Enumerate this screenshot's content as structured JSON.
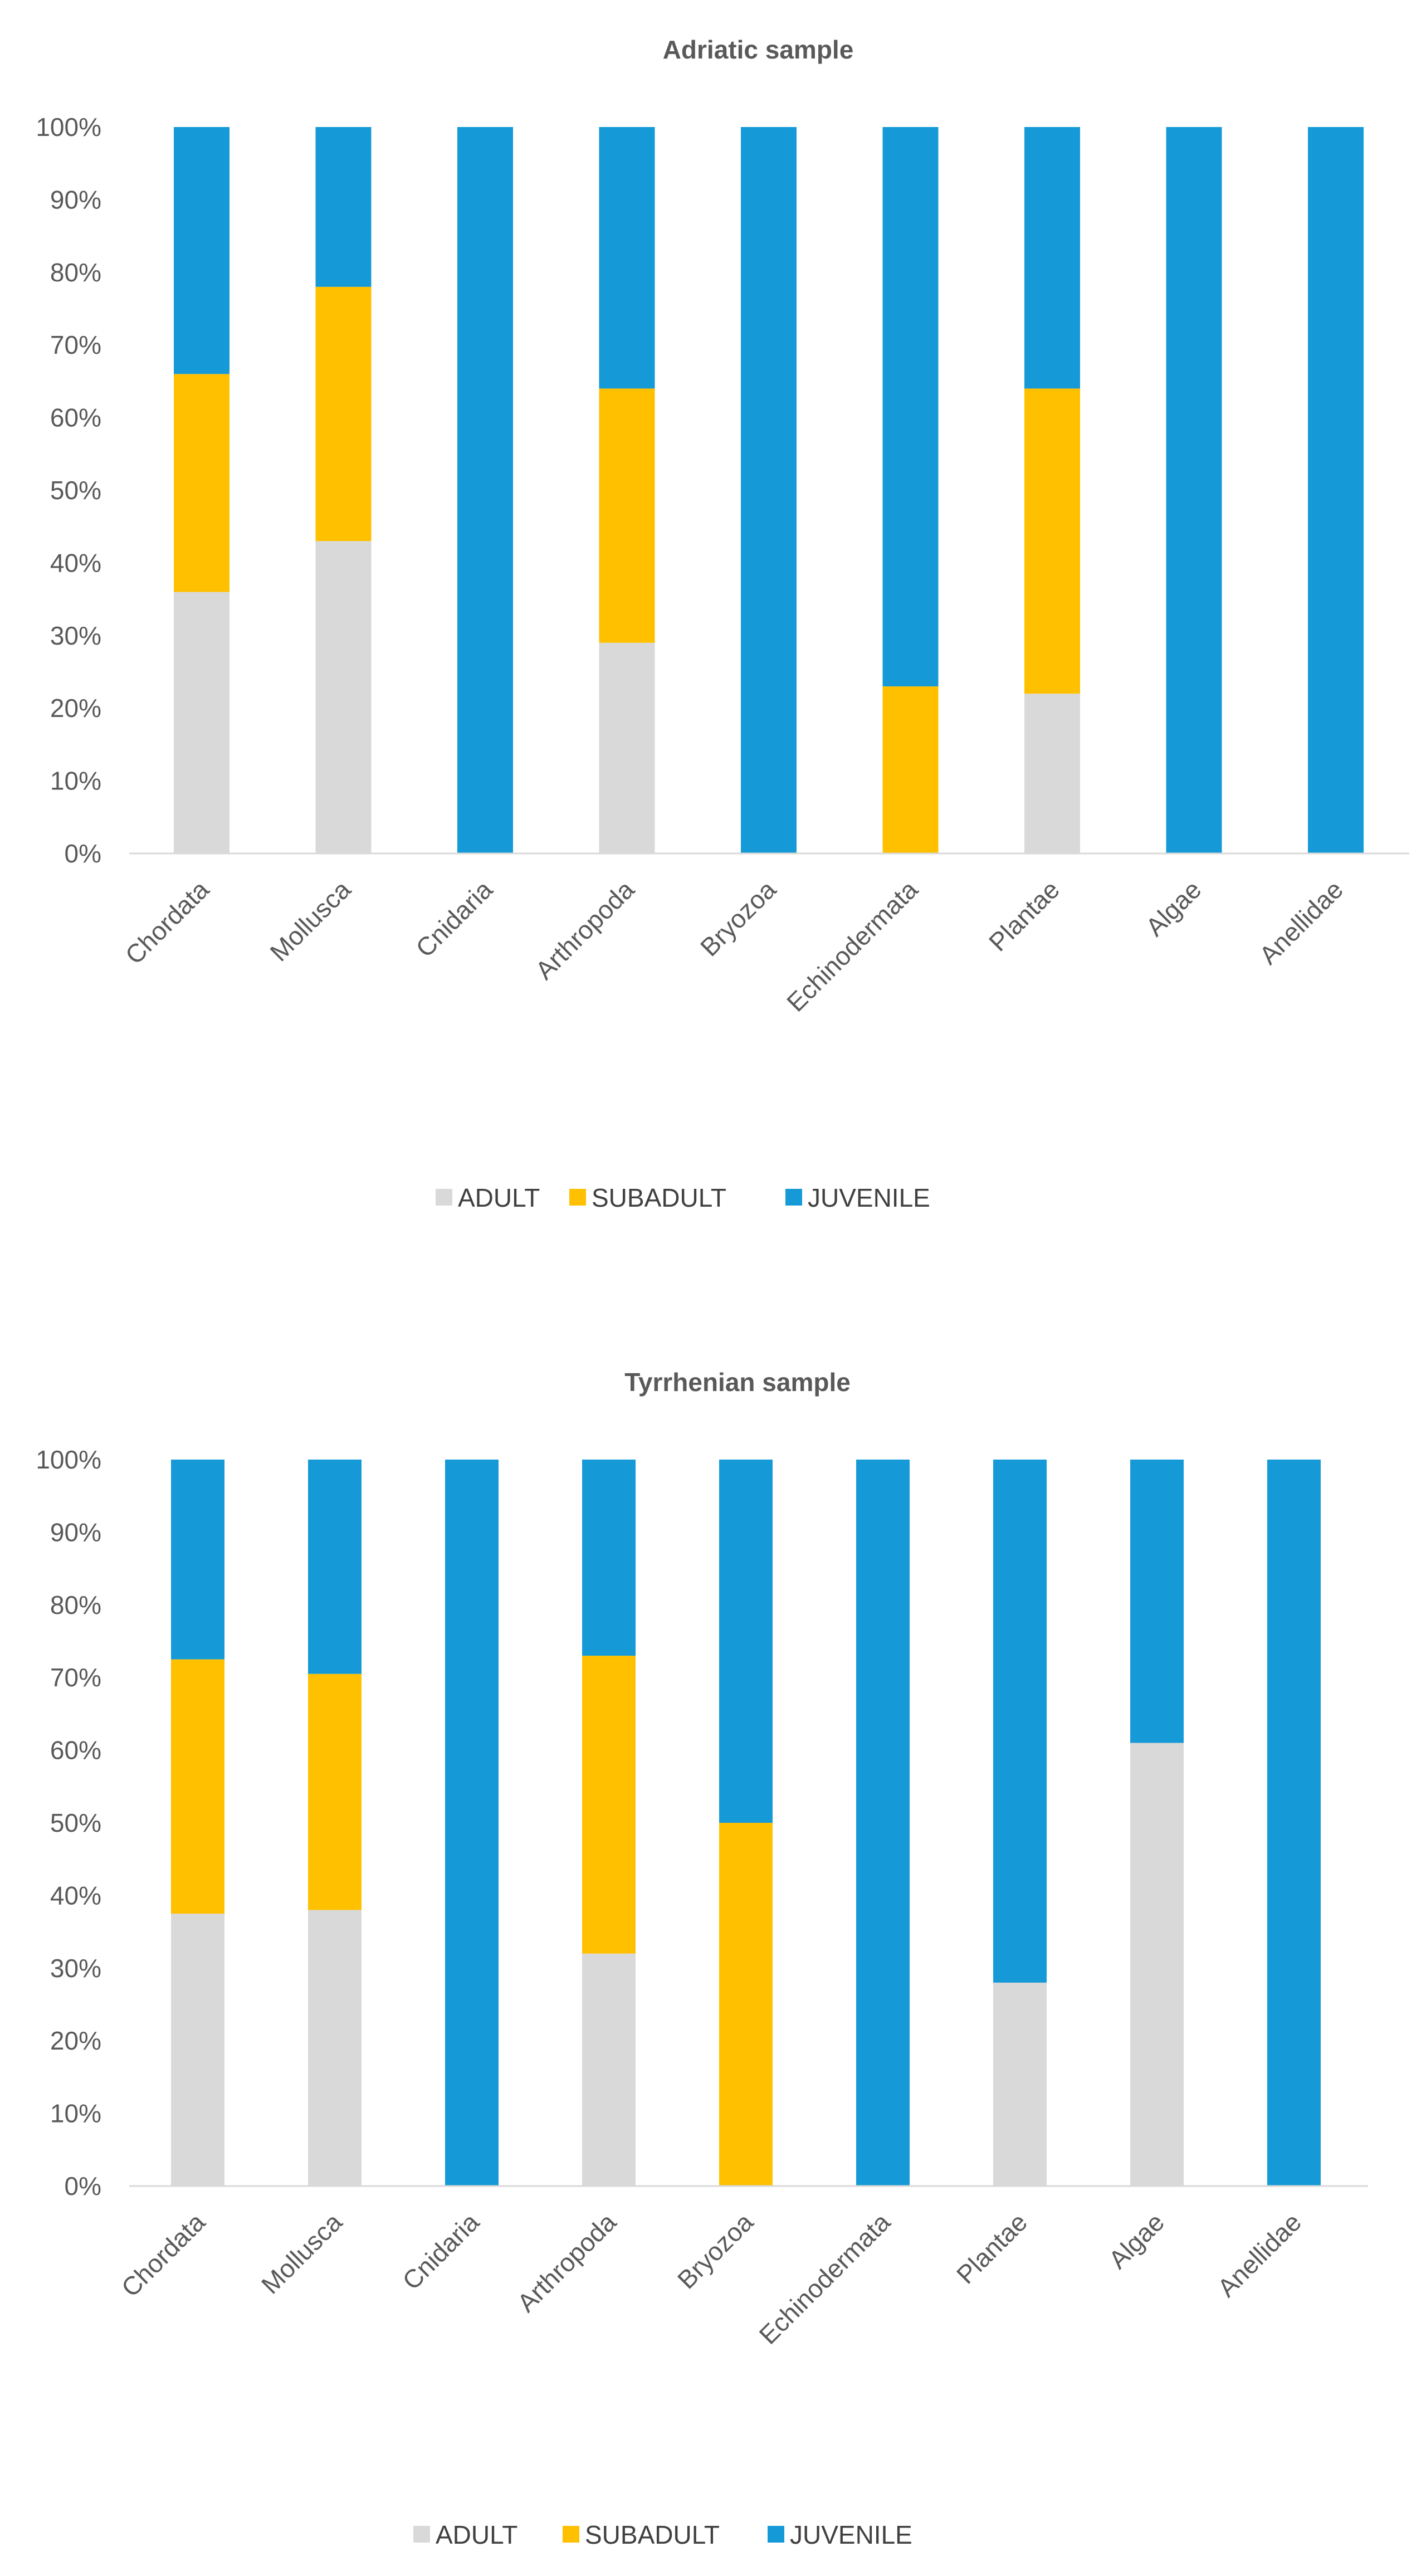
{
  "colors": {
    "adult": "#d9d9d9",
    "subadult": "#ffc000",
    "juvenile": "#159ad7",
    "axis": "#d9d9d9",
    "text": "#595959"
  },
  "chart_data": [
    {
      "type": "bar",
      "stacked": "percent",
      "title": "Adriatic sample",
      "categories": [
        "Chordata",
        "Mollusca",
        "Cnidaria",
        "Arthropoda",
        "Bryozoa",
        "Echinodermata",
        "Plantae",
        "Algae",
        "Anellidae"
      ],
      "series": [
        {
          "name": "ADULT",
          "color": "#d9d9d9",
          "values": [
            36,
            43,
            0,
            29,
            0,
            0,
            22,
            0,
            0
          ]
        },
        {
          "name": "SUBADULT",
          "color": "#ffc000",
          "values": [
            30,
            35,
            0,
            35,
            0,
            23,
            42,
            0,
            0
          ]
        },
        {
          "name": "JUVENILE",
          "color": "#159ad7",
          "values": [
            34,
            22,
            100,
            36,
            100,
            77,
            36,
            100,
            100
          ]
        }
      ],
      "ylim": [
        0,
        100
      ],
      "yticks": [
        "0%",
        "10%",
        "20%",
        "30%",
        "40%",
        "50%",
        "60%",
        "70%",
        "80%",
        "90%",
        "100%"
      ],
      "xlabel": "",
      "ylabel": "",
      "legend": "bottom"
    },
    {
      "type": "bar",
      "stacked": "percent",
      "title": "Tyrrhenian sample",
      "categories": [
        "Chordata",
        "Mollusca",
        "Cnidaria",
        "Arthropoda",
        "Bryozoa",
        "Echinodermata",
        "Plantae",
        "Algae",
        "Anellidae"
      ],
      "series": [
        {
          "name": "ADULT",
          "color": "#d9d9d9",
          "values": [
            37.5,
            38,
            0,
            32,
            0,
            0,
            28,
            61,
            0
          ]
        },
        {
          "name": "SUBADULT",
          "color": "#ffc000",
          "values": [
            35,
            32.5,
            0,
            41,
            50,
            0,
            0,
            0,
            0
          ]
        },
        {
          "name": "JUVENILE",
          "color": "#159ad7",
          "values": [
            27.5,
            29.5,
            100,
            27,
            50,
            100,
            72,
            39,
            100
          ]
        }
      ],
      "ylim": [
        0,
        100
      ],
      "yticks": [
        "0%",
        "10%",
        "20%",
        "30%",
        "40%",
        "50%",
        "60%",
        "70%",
        "80%",
        "90%",
        "100%"
      ],
      "xlabel": "",
      "ylabel": "",
      "legend": "bottom"
    }
  ]
}
